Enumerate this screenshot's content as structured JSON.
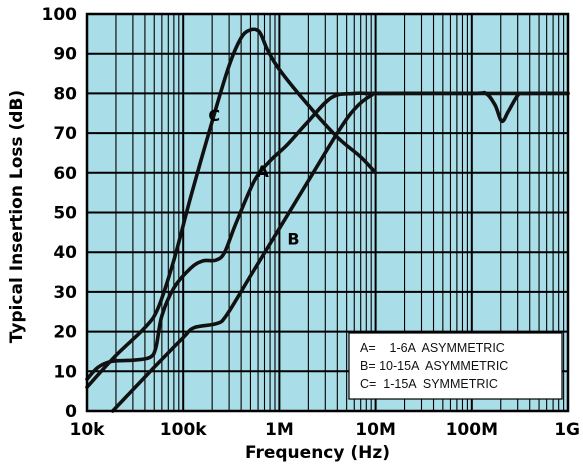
{
  "chart_data": {
    "type": "line",
    "xscale": "log",
    "xlabel": "Frequency (Hz)",
    "ylabel": "Typical Insertion Loss (dB)",
    "xlim": [
      10000,
      1000000000
    ],
    "ylim": [
      0,
      100
    ],
    "grid": true,
    "x_ticks": [
      {
        "value": 10000,
        "label": "10k"
      },
      {
        "value": 100000,
        "label": "100k"
      },
      {
        "value": 1000000,
        "label": "1M"
      },
      {
        "value": 10000000,
        "label": "10M"
      },
      {
        "value": 100000000,
        "label": "100M"
      },
      {
        "value": 1000000000,
        "label": "1G"
      }
    ],
    "y_ticks": [
      {
        "value": 0,
        "label": "0"
      },
      {
        "value": 10,
        "label": "10"
      },
      {
        "value": 20,
        "label": "20"
      },
      {
        "value": 30,
        "label": "30"
      },
      {
        "value": 40,
        "label": "40"
      },
      {
        "value": 50,
        "label": "50"
      },
      {
        "value": 60,
        "label": "60"
      },
      {
        "value": 70,
        "label": "70"
      },
      {
        "value": 80,
        "label": "80"
      },
      {
        "value": 90,
        "label": "90"
      },
      {
        "value": 100,
        "label": "100"
      }
    ],
    "series": [
      {
        "name": "A",
        "points": [
          [
            10000,
            8
          ],
          [
            13000,
            11
          ],
          [
            18000,
            12.5
          ],
          [
            30000,
            12.8
          ],
          [
            45000,
            13.5
          ],
          [
            52000,
            16
          ],
          [
            60000,
            24
          ],
          [
            80000,
            31
          ],
          [
            120000,
            36
          ],
          [
            160000,
            37.8
          ],
          [
            220000,
            38
          ],
          [
            270000,
            40
          ],
          [
            350000,
            47
          ],
          [
            550000,
            58
          ],
          [
            800000,
            63
          ],
          [
            1200000,
            67
          ],
          [
            2000000,
            73
          ],
          [
            3500000,
            79
          ],
          [
            6000000,
            80
          ],
          [
            10000000,
            80
          ],
          [
            100000000,
            80
          ],
          [
            1000000000,
            80
          ]
        ]
      },
      {
        "name": "B",
        "points": [
          [
            18500,
            0
          ],
          [
            50000,
            11
          ],
          [
            100000,
            18.5
          ],
          [
            130000,
            21
          ],
          [
            220000,
            22
          ],
          [
            280000,
            24
          ],
          [
            500000,
            34
          ],
          [
            1000000,
            46
          ],
          [
            2000000,
            58
          ],
          [
            4000000,
            70
          ],
          [
            6000000,
            76
          ],
          [
            9000000,
            79.5
          ],
          [
            12000000,
            80
          ],
          [
            100000000,
            80
          ],
          [
            140000000,
            80
          ],
          [
            175000000,
            77
          ],
          [
            205000000,
            73
          ],
          [
            240000000,
            75.5
          ],
          [
            300000000,
            79.5
          ],
          [
            350000000,
            80
          ],
          [
            1000000000,
            80
          ]
        ]
      },
      {
        "name": "C",
        "points": [
          [
            10000,
            6
          ],
          [
            20000,
            14
          ],
          [
            40000,
            21
          ],
          [
            55000,
            26
          ],
          [
            80000,
            38
          ],
          [
            120000,
            54
          ],
          [
            200000,
            73
          ],
          [
            300000,
            87
          ],
          [
            400000,
            94
          ],
          [
            500000,
            96
          ],
          [
            620000,
            95.5
          ],
          [
            750000,
            91
          ],
          [
            1000000,
            86
          ],
          [
            2000000,
            77
          ],
          [
            4000000,
            69
          ],
          [
            7000000,
            64
          ],
          [
            10000000,
            60
          ]
        ]
      }
    ],
    "annotations": [
      {
        "text": "C",
        "x": 210000,
        "y": 73
      },
      {
        "text": "A",
        "x": 670000,
        "y": 59
      },
      {
        "text": "B",
        "x": 1400000,
        "y": 42
      }
    ],
    "legend": {
      "placement": "bottom-right",
      "entries": [
        "A=    1-6A  ASYMMETRIC",
        "B= 10-15A  ASYMMETRIC",
        "C=  1-15A  SYMMETRIC"
      ]
    },
    "colors": {
      "plot_background": "#a9dde8",
      "grid": "#000000",
      "line": "#111111",
      "legend_background": "#ffffff"
    }
  }
}
